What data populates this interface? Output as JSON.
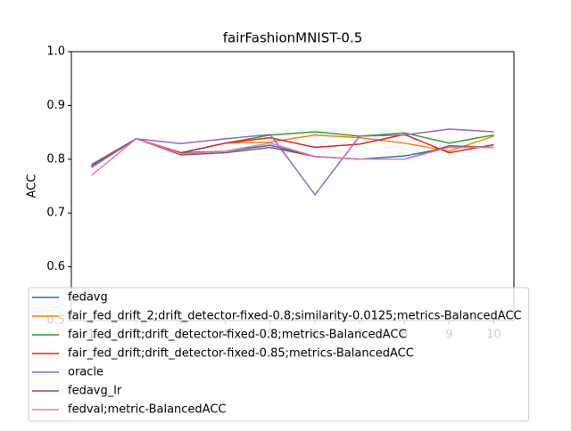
{
  "chart_data": {
    "type": "line",
    "title": "fairFashionMNIST-0.5",
    "y_label": "ACC",
    "x": [
      1,
      2,
      3,
      4,
      5,
      6,
      7,
      8,
      9,
      10
    ],
    "xlim": [
      0.55,
      10.45
    ],
    "xticks": [
      1,
      2,
      3,
      4,
      5,
      6,
      7,
      8,
      9,
      10
    ],
    "ylim": [
      0.5,
      1.0
    ],
    "yticks": [
      0.5,
      0.6,
      0.7,
      0.8,
      0.9,
      {
        "value": 1.0,
        "label": "1.0"
      }
    ],
    "legend": "lower left",
    "series": [
      {
        "name": "fedavg",
        "color": "#1f77b4",
        "values": [
          0.787,
          0.838,
          0.812,
          0.815,
          0.826,
          0.805,
          0.8,
          0.806,
          0.822,
          0.822
        ]
      },
      {
        "name": "fair_fed_drift_2;drift_detector-fixed-0.8;similarity-0.0125;metrics-BalancedACC",
        "color": "#ff7f0e",
        "values": [
          0.785,
          0.838,
          0.812,
          0.83,
          0.832,
          0.845,
          0.84,
          0.83,
          0.815,
          0.843
        ]
      },
      {
        "name": "fair_fed_drift;drift_detector-fixed-0.8;metrics-BalancedACC",
        "color": "#2ca02c",
        "values": [
          0.785,
          0.838,
          0.812,
          0.83,
          0.845,
          0.851,
          0.843,
          0.849,
          0.83,
          0.845
        ]
      },
      {
        "name": "fair_fed_drift;drift_detector-fixed-0.85;metrics-BalancedACC",
        "color": "#d62728",
        "values": [
          0.785,
          0.838,
          0.812,
          0.83,
          0.84,
          0.822,
          0.828,
          0.846,
          0.812,
          0.827
        ]
      },
      {
        "name": "oracle",
        "color": "#9467bd",
        "values": [
          0.785,
          0.838,
          0.829,
          0.838,
          0.846,
          0.734,
          0.843,
          0.845,
          0.856,
          0.851
        ]
      },
      {
        "name": "fedavg_lr",
        "color": "#8c564b",
        "values": [
          0.79,
          0.838,
          0.808,
          0.812,
          0.822,
          0.805,
          0.8,
          0.8,
          0.825,
          0.822
        ]
      },
      {
        "name": "fedval;metric-BalancedACC",
        "color": "#e377c2",
        "values": [
          0.77,
          0.838,
          0.81,
          0.815,
          0.83,
          0.805,
          0.8,
          0.8,
          0.822,
          0.822
        ]
      }
    ]
  }
}
